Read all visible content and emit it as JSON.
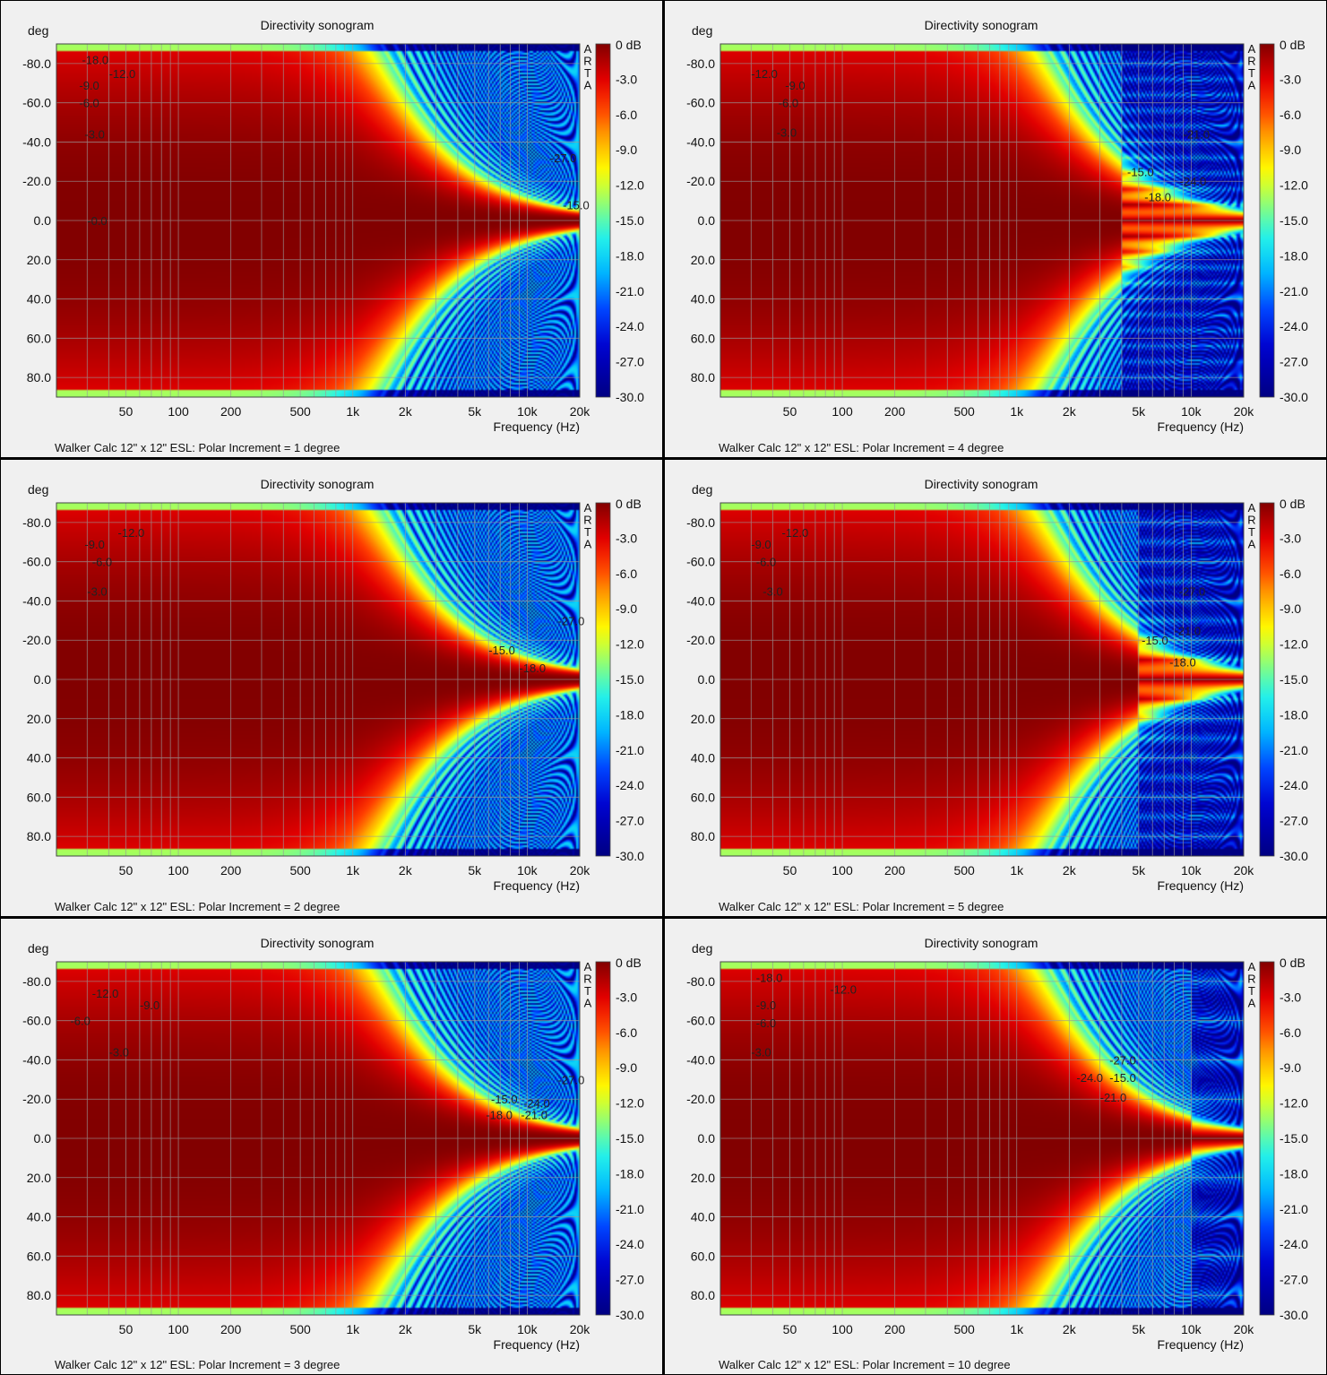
{
  "colorbar": {
    "ticks": [
      "0 dB",
      "-3.0",
      "-6.0",
      "-9.0",
      "-12.0",
      "-15.0",
      "-18.0",
      "-21.0",
      "-24.0",
      "-27.0",
      "-30.0"
    ],
    "brand": "ARTA"
  },
  "chart_data": [
    {
      "type": "heatmap",
      "title": "Directivity sonogram",
      "ylabel": "deg",
      "xlabel": "Frequency (Hz)",
      "x_ticks": [
        "50",
        "100",
        "200",
        "500",
        "1k",
        "2k",
        "5k",
        "10k",
        "20k"
      ],
      "y_ticks": [
        "-80.0",
        "-60.0",
        "-40.0",
        "-20.0",
        "0.0",
        "20.0",
        "40.0",
        "60.0",
        "80.0"
      ],
      "xlim": [
        20,
        20000
      ],
      "ylim": [
        -90,
        90
      ],
      "zlim": [
        -30,
        0
      ],
      "x_scale": "log",
      "caption": "Walker Calc 12\" x 12\" ESL: Polar Increment = 1 degree",
      "contour_labels": [
        "-18.0",
        "-12.0",
        "-9.0",
        "-6.0",
        "-3.0",
        "-0.0",
        "-27.0",
        "-15.0"
      ]
    },
    {
      "type": "heatmap",
      "title": "Directivity sonogram",
      "ylabel": "deg",
      "xlabel": "Frequency (Hz)",
      "x_ticks": [
        "50",
        "100",
        "200",
        "500",
        "1k",
        "2k",
        "5k",
        "10k",
        "20k"
      ],
      "y_ticks": [
        "-80.0",
        "-60.0",
        "-40.0",
        "-20.0",
        "0.0",
        "20.0",
        "40.0",
        "60.0",
        "80.0"
      ],
      "xlim": [
        20,
        20000
      ],
      "ylim": [
        -90,
        90
      ],
      "zlim": [
        -30,
        0
      ],
      "x_scale": "log",
      "caption": "Walker Calc 12\" x 12\" ESL: Polar Increment = 4 degree",
      "contour_labels": [
        "-12.0",
        "-9.0",
        "-6.0",
        "-3.0",
        "-21.0",
        "-15.0",
        "-24.0",
        "-18.0"
      ]
    },
    {
      "type": "heatmap",
      "title": "Directivity sonogram",
      "ylabel": "deg",
      "xlabel": "Frequency (Hz)",
      "x_ticks": [
        "50",
        "100",
        "200",
        "500",
        "1k",
        "2k",
        "5k",
        "10k",
        "20k"
      ],
      "y_ticks": [
        "-80.0",
        "-60.0",
        "-40.0",
        "-20.0",
        "0.0",
        "20.0",
        "40.0",
        "60.0",
        "80.0"
      ],
      "xlim": [
        20,
        20000
      ],
      "ylim": [
        -90,
        90
      ],
      "zlim": [
        -30,
        0
      ],
      "x_scale": "log",
      "caption": "Walker Calc 12\" x 12\" ESL: Polar Increment = 2 degree",
      "contour_labels": [
        "-12.0",
        "-9.0",
        "-6.0",
        "-3.0",
        "-27.0",
        "-15.0",
        "-18.0"
      ]
    },
    {
      "type": "heatmap",
      "title": "Directivity sonogram",
      "ylabel": "deg",
      "xlabel": "Frequency (Hz)",
      "x_ticks": [
        "50",
        "100",
        "200",
        "500",
        "1k",
        "2k",
        "5k",
        "10k",
        "20k"
      ],
      "y_ticks": [
        "-80.0",
        "-60.0",
        "-40.0",
        "-20.0",
        "0.0",
        "20.0",
        "40.0",
        "60.0",
        "80.0"
      ],
      "xlim": [
        20,
        20000
      ],
      "ylim": [
        -90,
        90
      ],
      "zlim": [
        -30,
        0
      ],
      "x_scale": "log",
      "caption": "Walker Calc 12\" x 12\" ESL: Polar Increment = 5 degree",
      "contour_labels": [
        "-12.0",
        "-9.0",
        "-6.0",
        "-3.0",
        "-27.0",
        "-21.0",
        "-15.0",
        "-18.0"
      ]
    },
    {
      "type": "heatmap",
      "title": "Directivity sonogram",
      "ylabel": "deg",
      "xlabel": "Frequency (Hz)",
      "x_ticks": [
        "50",
        "100",
        "200",
        "500",
        "1k",
        "2k",
        "5k",
        "10k",
        "20k"
      ],
      "y_ticks": [
        "-80.0",
        "-60.0",
        "-40.0",
        "-20.0",
        "0.0",
        "20.0",
        "40.0",
        "60.0",
        "80.0"
      ],
      "xlim": [
        20,
        20000
      ],
      "ylim": [
        -90,
        90
      ],
      "zlim": [
        -30,
        0
      ],
      "x_scale": "log",
      "caption": "Walker Calc 12\" x 12\" ESL: Polar Increment = 3 degree",
      "contour_labels": [
        "-12.0",
        "-9.0",
        "-6.0",
        "-3.0",
        "-27.0",
        "-15.0",
        "-24.0",
        "-18.0",
        "-21.0"
      ]
    },
    {
      "type": "heatmap",
      "title": "Directivity sonogram",
      "ylabel": "deg",
      "xlabel": "Frequency (Hz)",
      "x_ticks": [
        "50",
        "100",
        "200",
        "500",
        "1k",
        "2k",
        "5k",
        "10k",
        "20k"
      ],
      "y_ticks": [
        "-80.0",
        "-60.0",
        "-40.0",
        "-20.0",
        "0.0",
        "20.0",
        "40.0",
        "60.0",
        "80.0"
      ],
      "xlim": [
        20,
        20000
      ],
      "ylim": [
        -90,
        90
      ],
      "zlim": [
        -30,
        0
      ],
      "x_scale": "log",
      "caption": "Walker Calc 12\" x 12\" ESL: Polar Increment = 10 degree",
      "contour_labels": [
        "-18.0",
        "-12.0",
        "-9.0",
        "-6.0",
        "-3.0",
        "-27.0",
        "-24.0",
        "-15.0",
        "-21.0"
      ]
    }
  ]
}
